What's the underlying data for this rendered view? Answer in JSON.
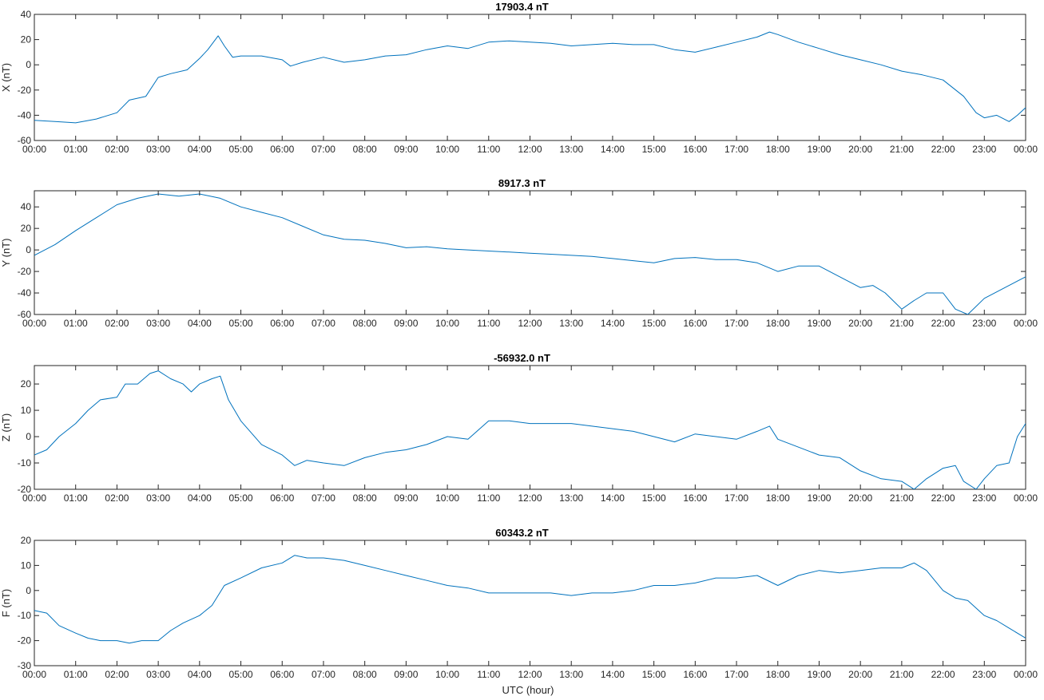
{
  "figure": {
    "xlabel": "UTC (hour)",
    "line_color": "#0072BD",
    "axis_color": "#262626"
  },
  "chart_data": [
    {
      "type": "line",
      "title": "17903.4 nT",
      "ylabel": "X (nT)",
      "xlim": [
        0,
        24
      ],
      "ylim": [
        -60,
        40
      ],
      "yticks": [
        -60,
        -40,
        -20,
        0,
        20,
        40
      ],
      "xticks": [
        "00:00",
        "01:00",
        "02:00",
        "03:00",
        "04:00",
        "05:00",
        "06:00",
        "07:00",
        "08:00",
        "09:00",
        "10:00",
        "11:00",
        "12:00",
        "13:00",
        "14:00",
        "15:00",
        "16:00",
        "17:00",
        "18:00",
        "19:00",
        "20:00",
        "21:00",
        "22:00",
        "23:00",
        "00:00"
      ],
      "grid": false,
      "series": [
        {
          "x": [
            0,
            0.5,
            1.0,
            1.5,
            2.0,
            2.3,
            2.7,
            3.0,
            3.3,
            3.7,
            4.0,
            4.2,
            4.45,
            4.6,
            4.8,
            5.0,
            5.5,
            6.0,
            6.2,
            6.5,
            7.0,
            7.5,
            8.0,
            8.5,
            9.0,
            9.5,
            10.0,
            10.5,
            11.0,
            11.5,
            12.0,
            12.5,
            13.0,
            13.5,
            14.0,
            14.5,
            15.0,
            15.5,
            16.0,
            16.5,
            17.0,
            17.5,
            17.8,
            18.0,
            18.5,
            19.0,
            19.5,
            20.0,
            20.5,
            21.0,
            21.5,
            22.0,
            22.5,
            22.8,
            23.0,
            23.3,
            23.6,
            23.8,
            24.0
          ],
          "y": [
            -44,
            -45,
            -46,
            -43,
            -38,
            -28,
            -25,
            -10,
            -7,
            -4,
            5,
            12,
            23,
            15,
            6,
            7,
            7,
            4,
            -1,
            2,
            6,
            2,
            4,
            7,
            8,
            12,
            15,
            13,
            18,
            19,
            18,
            17,
            15,
            16,
            17,
            16,
            16,
            12,
            10,
            14,
            18,
            22,
            26,
            24,
            18,
            13,
            8,
            4,
            0,
            -5,
            -8,
            -12,
            -25,
            -38,
            -42,
            -40,
            -45,
            -40,
            -34
          ]
        }
      ]
    },
    {
      "type": "line",
      "title": "8917.3 nT",
      "ylabel": "Y (nT)",
      "xlim": [
        0,
        24
      ],
      "ylim": [
        -60,
        55
      ],
      "yticks": [
        -60,
        -40,
        -20,
        0,
        20,
        40
      ],
      "xticks": [
        "00:00",
        "01:00",
        "02:00",
        "03:00",
        "04:00",
        "05:00",
        "06:00",
        "07:00",
        "08:00",
        "09:00",
        "10:00",
        "11:00",
        "12:00",
        "13:00",
        "14:00",
        "15:00",
        "16:00",
        "17:00",
        "18:00",
        "19:00",
        "20:00",
        "21:00",
        "22:00",
        "23:00",
        "00:00"
      ],
      "grid": false,
      "series": [
        {
          "x": [
            0,
            0.5,
            1.0,
            1.5,
            2.0,
            2.5,
            3.0,
            3.5,
            4.0,
            4.5,
            5.0,
            5.5,
            6.0,
            6.5,
            7.0,
            7.5,
            8.0,
            8.5,
            9.0,
            9.5,
            10.0,
            10.5,
            11.0,
            11.5,
            12.0,
            12.5,
            13.0,
            13.5,
            14.0,
            14.5,
            15.0,
            15.5,
            16.0,
            16.5,
            17.0,
            17.5,
            18.0,
            18.5,
            19.0,
            19.5,
            20.0,
            20.3,
            20.6,
            21.0,
            21.3,
            21.6,
            22.0,
            22.3,
            22.6,
            23.0,
            23.5,
            24.0
          ],
          "y": [
            -5,
            5,
            18,
            30,
            42,
            48,
            52,
            50,
            52,
            48,
            40,
            35,
            30,
            22,
            14,
            10,
            9,
            6,
            2,
            3,
            1,
            0,
            -1,
            -2,
            -3,
            -4,
            -5,
            -6,
            -8,
            -10,
            -12,
            -8,
            -7,
            -9,
            -9,
            -12,
            -20,
            -15,
            -15,
            -25,
            -35,
            -33,
            -40,
            -55,
            -47,
            -40,
            -40,
            -55,
            -60,
            -45,
            -35,
            -25
          ]
        }
      ]
    },
    {
      "type": "line",
      "title": "-56932.0 nT",
      "ylabel": "Z (nT)",
      "xlim": [
        0,
        24
      ],
      "ylim": [
        -20,
        27
      ],
      "yticks": [
        -20,
        -10,
        0,
        10,
        20
      ],
      "xticks": [
        "00:00",
        "01:00",
        "02:00",
        "03:00",
        "04:00",
        "05:00",
        "06:00",
        "07:00",
        "08:00",
        "09:00",
        "10:00",
        "11:00",
        "12:00",
        "13:00",
        "14:00",
        "15:00",
        "16:00",
        "17:00",
        "18:00",
        "19:00",
        "20:00",
        "21:00",
        "22:00",
        "23:00",
        "00:00"
      ],
      "grid": false,
      "series": [
        {
          "x": [
            0,
            0.3,
            0.6,
            1.0,
            1.3,
            1.6,
            2.0,
            2.2,
            2.5,
            2.8,
            3.0,
            3.3,
            3.6,
            3.8,
            4.0,
            4.3,
            4.5,
            4.7,
            5.0,
            5.5,
            6.0,
            6.3,
            6.6,
            7.0,
            7.5,
            8.0,
            8.5,
            9.0,
            9.5,
            10.0,
            10.5,
            11.0,
            11.5,
            12.0,
            12.5,
            13.0,
            13.5,
            14.0,
            14.5,
            15.0,
            15.5,
            16.0,
            16.5,
            17.0,
            17.5,
            17.8,
            18.0,
            18.5,
            19.0,
            19.5,
            20.0,
            20.5,
            21.0,
            21.3,
            21.6,
            22.0,
            22.3,
            22.5,
            22.8,
            23.0,
            23.3,
            23.6,
            23.8,
            24.0
          ],
          "y": [
            -7,
            -5,
            0,
            5,
            10,
            14,
            15,
            20,
            20,
            24,
            25,
            22,
            20,
            17,
            20,
            22,
            23,
            14,
            6,
            -3,
            -7,
            -11,
            -9,
            -10,
            -11,
            -8,
            -6,
            -5,
            -3,
            0,
            -1,
            6,
            6,
            5,
            5,
            5,
            4,
            3,
            2,
            0,
            -2,
            1,
            0,
            -1,
            2,
            4,
            -1,
            -4,
            -7,
            -8,
            -13,
            -16,
            -17,
            -20,
            -16,
            -12,
            -11,
            -17,
            -20,
            -16,
            -11,
            -10,
            0,
            5
          ]
        }
      ]
    },
    {
      "type": "line",
      "title": "60343.2 nT",
      "ylabel": "F (nT)",
      "xlim": [
        0,
        24
      ],
      "ylim": [
        -30,
        20
      ],
      "yticks": [
        -30,
        -20,
        -10,
        0,
        10,
        20
      ],
      "xticks": [
        "00:00",
        "01:00",
        "02:00",
        "03:00",
        "04:00",
        "05:00",
        "06:00",
        "07:00",
        "08:00",
        "09:00",
        "10:00",
        "11:00",
        "12:00",
        "13:00",
        "14:00",
        "15:00",
        "16:00",
        "17:00",
        "18:00",
        "19:00",
        "20:00",
        "21:00",
        "22:00",
        "23:00",
        "00:00"
      ],
      "grid": false,
      "series": [
        {
          "x": [
            0,
            0.3,
            0.6,
            1.0,
            1.3,
            1.6,
            2.0,
            2.3,
            2.6,
            3.0,
            3.3,
            3.6,
            4.0,
            4.3,
            4.6,
            5.0,
            5.5,
            6.0,
            6.3,
            6.6,
            7.0,
            7.5,
            8.0,
            8.5,
            9.0,
            9.5,
            10.0,
            10.5,
            11.0,
            11.5,
            12.0,
            12.5,
            13.0,
            13.5,
            14.0,
            14.5,
            15.0,
            15.5,
            16.0,
            16.5,
            17.0,
            17.5,
            18.0,
            18.5,
            19.0,
            19.5,
            20.0,
            20.5,
            21.0,
            21.3,
            21.6,
            22.0,
            22.3,
            22.6,
            23.0,
            23.3,
            23.6,
            24.0
          ],
          "y": [
            -8,
            -9,
            -14,
            -17,
            -19,
            -20,
            -20,
            -21,
            -20,
            -20,
            -16,
            -13,
            -10,
            -6,
            2,
            5,
            9,
            11,
            14,
            13,
            13,
            12,
            10,
            8,
            6,
            4,
            2,
            1,
            -1,
            -1,
            -1,
            -1,
            -2,
            -1,
            -1,
            0,
            2,
            2,
            3,
            5,
            5,
            6,
            2,
            6,
            8,
            7,
            8,
            9,
            9,
            11,
            8,
            0,
            -3,
            -4,
            -10,
            -12,
            -15,
            -19
          ]
        }
      ]
    }
  ]
}
